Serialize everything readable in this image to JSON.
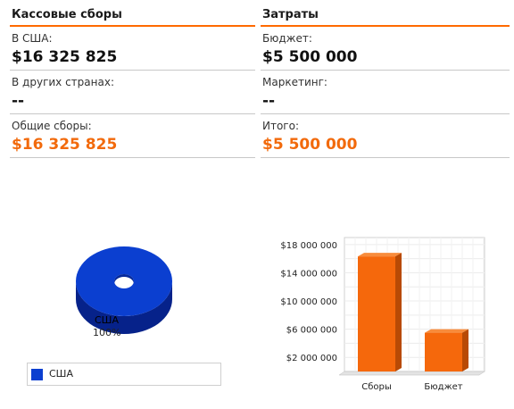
{
  "box_office": {
    "title": "Кассовые сборы",
    "usa_label": "В США:",
    "usa_value": "$16 325 825",
    "other_label": "В других странах:",
    "other_value": "--",
    "total_label": "Общие сборы:",
    "total_value": "$16 325 825"
  },
  "costs": {
    "title": "Затраты",
    "budget_label": "Бюджет:",
    "budget_value": "$5 500 000",
    "marketing_label": "Маркетинг:",
    "marketing_value": "--",
    "total_label": "Итого:",
    "total_value": "$5 500 000"
  },
  "chart_data": [
    {
      "type": "pie",
      "slices": [
        {
          "label": "США",
          "value": 100,
          "percent_label": "100%",
          "color": "#0b3fd0"
        }
      ],
      "legend": [
        {
          "label": "США",
          "color": "#0b3fd0"
        }
      ],
      "legend_position": "bottom"
    },
    {
      "type": "bar",
      "categories": [
        "Сборы",
        "Бюджет"
      ],
      "values": [
        16325825,
        5500000
      ],
      "ylim": [
        0,
        19000000
      ],
      "yticks": [
        2000000,
        6000000,
        10000000,
        14000000,
        18000000
      ],
      "ytick_labels": [
        "$2 000 000",
        "$6 000 000",
        "$10 000 000",
        "$14 000 000",
        "$18 000 000"
      ],
      "bar_color": "#f5680c",
      "grid": true
    }
  ]
}
